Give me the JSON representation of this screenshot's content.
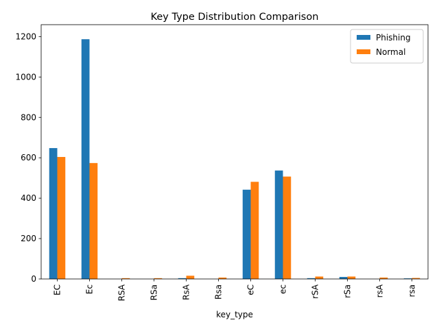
{
  "chart_data": {
    "type": "bar",
    "title": "Key Type Distribution Comparison",
    "xlabel": "key_type",
    "ylabel": "",
    "categories": [
      "EC",
      "Ec",
      "RSA",
      "RSa",
      "RsA",
      "Rsa",
      "eC",
      "ec",
      "rSA",
      "rSa",
      "rsA",
      "rsa"
    ],
    "series": [
      {
        "name": "Phishing",
        "color": "#1f77b4",
        "values": [
          648,
          1187,
          0,
          0,
          4,
          0,
          442,
          537,
          4,
          10,
          0,
          3
        ]
      },
      {
        "name": "Normal",
        "color": "#ff7f0e",
        "values": [
          604,
          574,
          4,
          4,
          16,
          7,
          481,
          507,
          12,
          12,
          7,
          5
        ]
      }
    ],
    "ylim": [
      0,
      1259
    ],
    "yticks": [
      0,
      200,
      400,
      600,
      800,
      1000,
      1200
    ],
    "grid": false,
    "legend": "top-right"
  }
}
